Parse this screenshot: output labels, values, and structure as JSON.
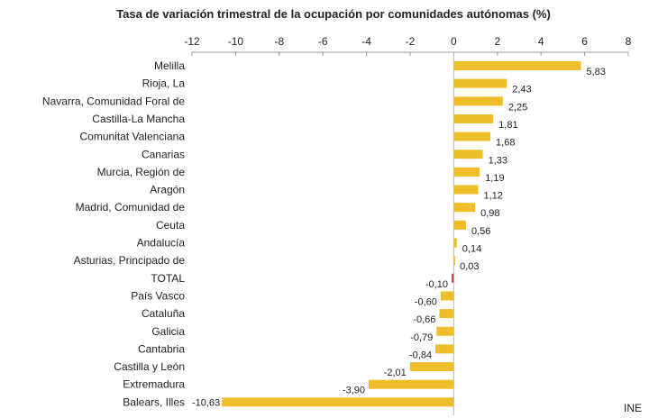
{
  "chart_data": {
    "type": "bar",
    "orientation": "horizontal",
    "title": "Tasa de variación trimestral de la ocupación por comunidades autónomas (%)",
    "xlim": [
      -12,
      8
    ],
    "xticks": [
      -12,
      -10,
      -8,
      -6,
      -4,
      -2,
      0,
      2,
      4,
      6,
      8
    ],
    "axis_position": "top",
    "grid": false,
    "categories": [
      "Melilla",
      "Rioja, La",
      "Navarra, Comunidad Foral de",
      "Castilla-La Mancha",
      "Comunitat Valenciana",
      "Canarias",
      "Murcia, Región de",
      "Aragón",
      "Madrid, Comunidad de",
      "Ceuta",
      "Andalucía",
      "Asturias, Principado de",
      "TOTAL",
      "País Vasco",
      "Cataluña",
      "Galicia",
      "Cantabria",
      "Castilla y León",
      "Extremadura",
      "Balears, Illes"
    ],
    "values": [
      5.83,
      2.43,
      2.25,
      1.81,
      1.68,
      1.33,
      1.19,
      1.12,
      0.98,
      0.56,
      0.14,
      0.03,
      -0.1,
      -0.6,
      -0.66,
      -0.79,
      -0.84,
      -2.01,
      -3.9,
      -10.63
    ],
    "value_labels": [
      "5,83",
      "2,43",
      "2,25",
      "1,81",
      "1,68",
      "1,33",
      "1,19",
      "1,12",
      "0,98",
      "0,56",
      "0,14",
      "0,03",
      "-0,10",
      "-0,60",
      "-0,66",
      "-0,79",
      "-0,84",
      "-2,01",
      "-3,90",
      "-10,63"
    ],
    "colors": {
      "bar": "#f0be2a",
      "total": "#c0504d"
    },
    "source": "INE"
  }
}
